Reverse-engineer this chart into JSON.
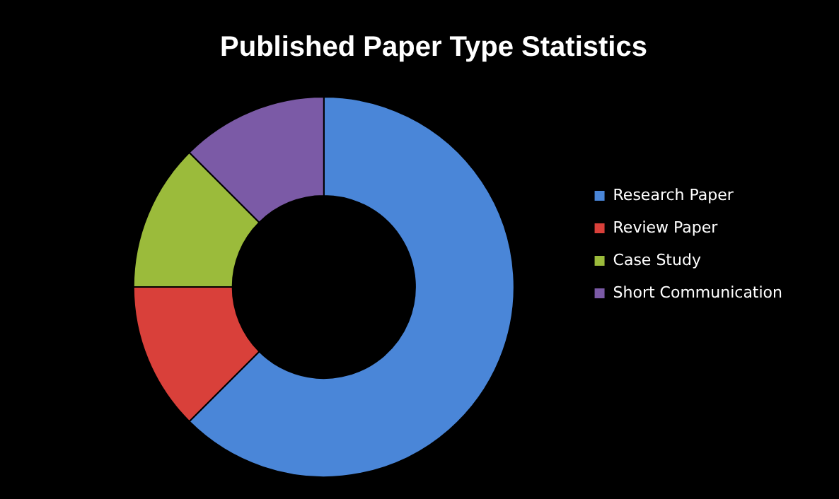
{
  "chart_data": {
    "type": "donut",
    "title": "Published Paper Type Statistics",
    "categories": [
      "Research Paper",
      "Review Paper",
      "Case Study",
      "Short Communication"
    ],
    "values": [
      62.5,
      12.5,
      12.5,
      12.5
    ],
    "colors": [
      "#4a86d8",
      "#d9403a",
      "#9bbb3b",
      "#7b5aa6"
    ],
    "legend": "right"
  }
}
